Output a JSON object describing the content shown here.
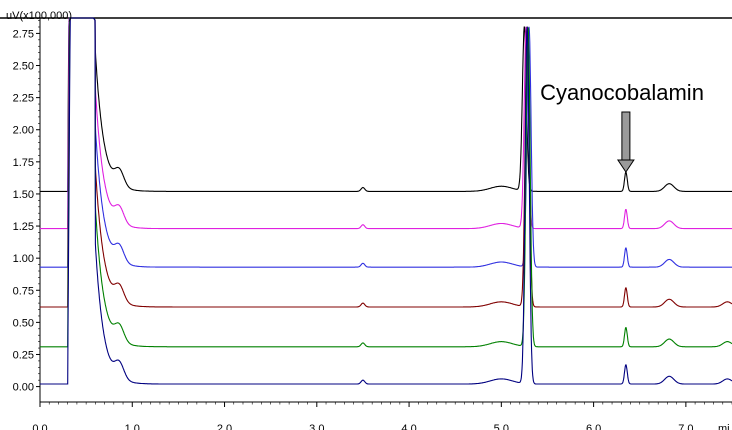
{
  "chart_data": {
    "type": "line",
    "ylabel": "uV(x100,000)",
    "xlabel": "mi",
    "xlim": [
      0.0,
      7.5
    ],
    "ylim": [
      -0.12,
      2.87
    ],
    "x_ticks": [
      0.0,
      1.0,
      2.0,
      3.0,
      4.0,
      5.0,
      6.0,
      7.0
    ],
    "x_tick_labels": [
      "0.0",
      "1.0",
      "2.0",
      "3.0",
      "4.0",
      "5.0",
      "6.0",
      "7.0"
    ],
    "y_ticks": [
      0.0,
      0.25,
      0.5,
      0.75,
      1.0,
      1.25,
      1.5,
      1.75,
      2.0,
      2.25,
      2.5,
      2.75
    ],
    "y_tick_labels": [
      "0.00",
      "0.25",
      "0.50",
      "0.75",
      "1.00",
      "1.25",
      "1.50",
      "1.75",
      "2.00",
      "2.25",
      "2.50",
      "2.75"
    ],
    "grid": false,
    "annotation": {
      "text": "Cyanocobalamin",
      "x": 6.35,
      "arrow": "down"
    },
    "series": [
      {
        "color": "#000000",
        "baseline": 1.52,
        "offset": 0.0
      },
      {
        "color": "#e020e0",
        "baseline": 1.23,
        "offset": 0.02
      },
      {
        "color": "#3030e0",
        "baseline": 0.93,
        "offset": 0.05
      },
      {
        "color": "#800000",
        "baseline": 0.62,
        "offset": 0.03
      },
      {
        "color": "#008000",
        "baseline": 0.31,
        "offset": 0.04
      },
      {
        "color": "#000080",
        "baseline": 0.02,
        "offset": 0.03
      }
    ]
  }
}
